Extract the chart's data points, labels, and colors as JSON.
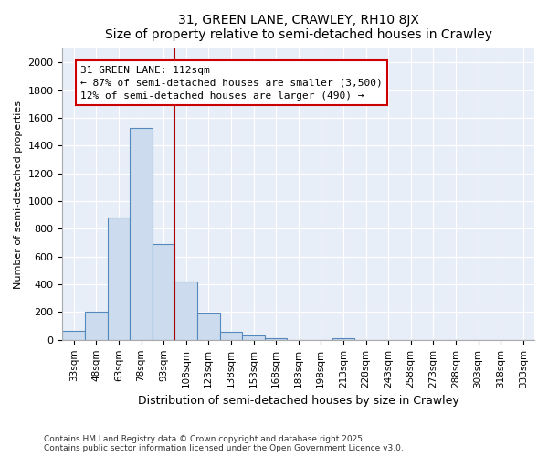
{
  "title": "31, GREEN LANE, CRAWLEY, RH10 8JX",
  "subtitle": "Size of property relative to semi-detached houses in Crawley",
  "xlabel": "Distribution of semi-detached houses by size in Crawley",
  "ylabel": "Number of semi-detached properties",
  "categories": [
    "33sqm",
    "48sqm",
    "63sqm",
    "78sqm",
    "93sqm",
    "108sqm",
    "123sqm",
    "138sqm",
    "153sqm",
    "168sqm",
    "183sqm",
    "198sqm",
    "213sqm",
    "228sqm",
    "243sqm",
    "258sqm",
    "273sqm",
    "288sqm",
    "303sqm",
    "318sqm",
    "333sqm"
  ],
  "values": [
    65,
    200,
    880,
    1530,
    690,
    420,
    195,
    60,
    30,
    10,
    0,
    0,
    10,
    0,
    0,
    0,
    0,
    0,
    0,
    0,
    0
  ],
  "bar_color": "#ccdcee",
  "bar_edge_color": "#5588bb",
  "vline_x": 4.5,
  "vline_color": "#aa0000",
  "property_label": "31 GREEN LANE: 112sqm",
  "annotation_smaller": "← 87% of semi-detached houses are smaller (3,500)",
  "annotation_larger": "12% of semi-detached houses are larger (490) →",
  "box_color": "#cc0000",
  "ylim": [
    0,
    2100
  ],
  "yticks": [
    0,
    200,
    400,
    600,
    800,
    1000,
    1200,
    1400,
    1600,
    1800,
    2000
  ],
  "footnote1": "Contains HM Land Registry data © Crown copyright and database right 2025.",
  "footnote2": "Contains public sector information licensed under the Open Government Licence v3.0.",
  "fig_bg_color": "#ffffff",
  "plot_bg_color": "#e8eef8"
}
